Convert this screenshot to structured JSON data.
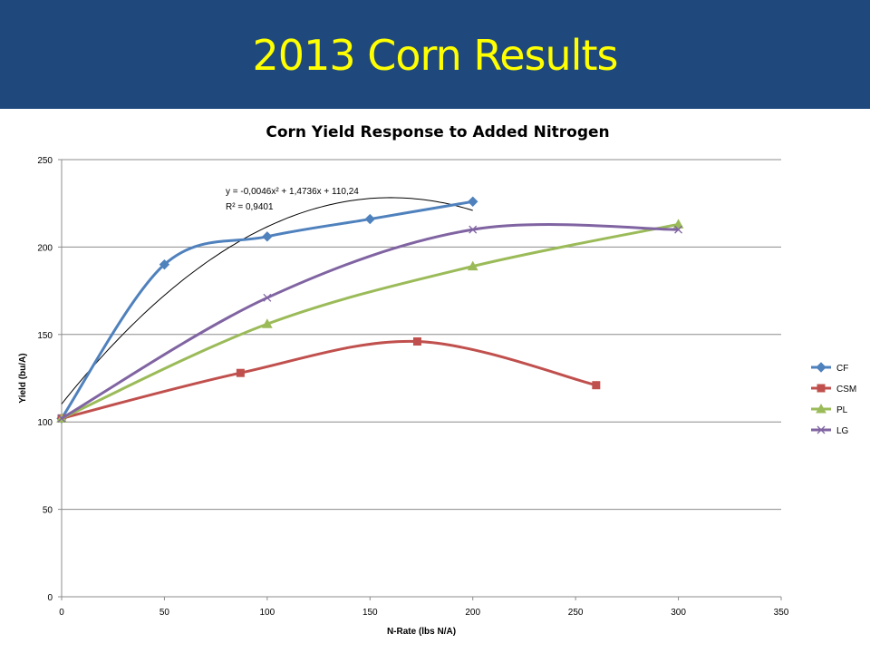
{
  "slide": {
    "title": "2013 Corn Results",
    "header_color": "#1f497d",
    "title_color": "#ffff00"
  },
  "chart_data": {
    "type": "line",
    "title": "Corn Yield Response to Added Nitrogen",
    "xlabel": "N-Rate (lbs N/A)",
    "ylabel": "Yield (bu/A)",
    "xlim": [
      0,
      350
    ],
    "ylim": [
      0,
      250
    ],
    "xticks": [
      0,
      50,
      100,
      150,
      200,
      250,
      300,
      350
    ],
    "yticks": [
      0,
      50,
      100,
      150,
      200,
      250
    ],
    "grid": true,
    "legend_position": "right",
    "series": [
      {
        "name": "CF",
        "color": "#4f81bd",
        "marker": "diamond",
        "x": [
          0,
          50,
          100,
          150,
          200
        ],
        "y": [
          102,
          190,
          206,
          216,
          226
        ]
      },
      {
        "name": "CSM",
        "color": "#c0504d",
        "marker": "square",
        "x": [
          0,
          87,
          173,
          260
        ],
        "y": [
          102,
          128,
          146,
          121
        ]
      },
      {
        "name": "PL",
        "color": "#9bbb59",
        "marker": "triangle",
        "x": [
          0,
          100,
          200,
          300
        ],
        "y": [
          102,
          156,
          189,
          213
        ]
      },
      {
        "name": "LG",
        "color": "#8064a2",
        "marker": "x",
        "x": [
          0,
          100,
          200,
          300
        ],
        "y": [
          102,
          171,
          210,
          210
        ]
      }
    ],
    "trendline": {
      "series": "CF",
      "type": "polynomial",
      "coefficients": {
        "a": -0.0046,
        "b": 1.4736,
        "c": 110.24
      },
      "equation_text": "y = -0,0046x² + 1,4736x + 110,24",
      "r2_text": "R² = 0,9401",
      "color": "#000000",
      "x_range": [
        0,
        200
      ]
    }
  }
}
